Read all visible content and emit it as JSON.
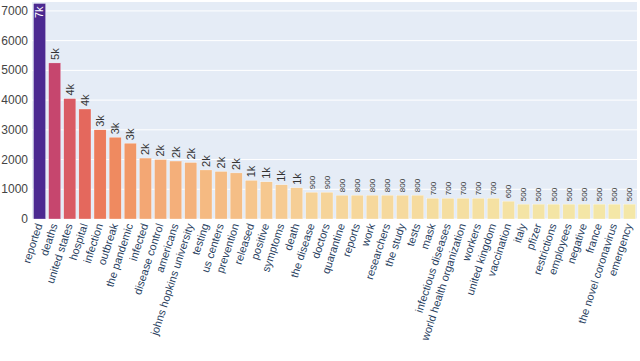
{
  "chart_data": {
    "type": "bar",
    "categories": [
      "reported",
      "deaths",
      "united states",
      "hospital",
      "infection",
      "outbreak",
      "the pandemic",
      "infected",
      "disease control",
      "americans",
      "johns hopkins university",
      "testing",
      "us centers",
      "prevention",
      "released",
      "positive",
      "symptoms",
      "death",
      "the disease",
      "doctors",
      "quarantine",
      "reports",
      "work",
      "researchers",
      "the study",
      "tests",
      "mask",
      "infectious diseases",
      "world health organization",
      "workers",
      "united kingdom",
      "vaccination",
      "italy",
      "pfizer",
      "restrictions",
      "employees",
      "negative",
      "france",
      "the novel coronavirus",
      "emergency"
    ],
    "values": [
      7250,
      5250,
      4050,
      3700,
      3000,
      2750,
      2550,
      2050,
      2000,
      1950,
      1900,
      1650,
      1600,
      1550,
      1300,
      1250,
      1150,
      1050,
      900,
      900,
      800,
      800,
      800,
      800,
      800,
      800,
      700,
      700,
      700,
      700,
      700,
      600,
      500,
      500,
      500,
      500,
      500,
      500,
      500,
      500
    ],
    "value_labels": [
      "7k",
      "5k",
      "4k",
      "4k",
      "3k",
      "3k",
      "3k",
      "2k",
      "2k",
      "2k",
      "2k",
      "2k",
      "2k",
      "2k",
      "1k",
      "1k",
      "1k",
      "1k",
      "900",
      "900",
      "800",
      "800",
      "800",
      "800",
      "800",
      "800",
      "700",
      "700",
      "700",
      "700",
      "700",
      "600",
      "500",
      "500",
      "500",
      "500",
      "500",
      "500",
      "500",
      "500"
    ],
    "colors": [
      "#4b2991",
      "#c6466e",
      "#d95b64",
      "#e4685d",
      "#ec7b5b",
      "#ef8a60",
      "#f19766",
      "#f3a774",
      "#f3ab77",
      "#f4af7a",
      "#f4b27c",
      "#f5ba82",
      "#f5bc84",
      "#f5be86",
      "#f6c68d",
      "#f6c88f",
      "#f6cb92",
      "#f6ce95",
      "#f6d398",
      "#f6d499",
      "#f6d69b",
      "#f6d79b",
      "#f6d89c",
      "#f6d99d",
      "#f6da9e",
      "#f6db9e",
      "#f5dd9f",
      "#f5dea0",
      "#f5dfa1",
      "#f5e0a2",
      "#f5e1a2",
      "#f5e2a3",
      "#f4e4a5",
      "#f4e4a5",
      "#f4e5a5",
      "#f4e5a6",
      "#f4e6a6",
      "#f4e6a6",
      "#f4e7a7",
      "#f4e7a7"
    ],
    "ylim": [
      0,
      7300
    ],
    "yticks": [
      0,
      1000,
      2000,
      3000,
      4000,
      5000,
      6000,
      7000
    ],
    "grid": true,
    "data_labels": true
  }
}
